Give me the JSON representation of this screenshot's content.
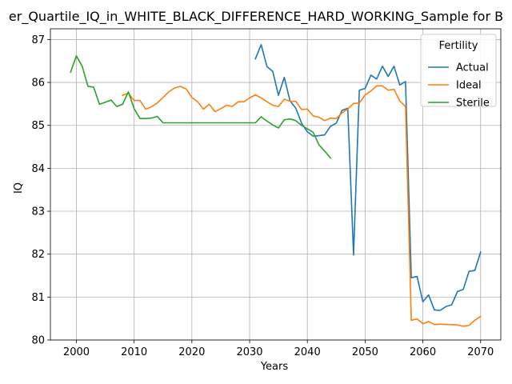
{
  "chart_data": {
    "type": "line",
    "title": "er_Quartile_IQ_in_WHITE_BLACK_DIFFERENCE_HARD_WORKING_Sample for B",
    "xlabel": "Years",
    "ylabel": "IQ",
    "xlim": [
      1995.5,
      2073.5
    ],
    "ylim": [
      80.0,
      87.25
    ],
    "xticks": [
      2000,
      2010,
      2020,
      2030,
      2040,
      2050,
      2060,
      2070
    ],
    "yticks": [
      80,
      81,
      82,
      83,
      84,
      85,
      86,
      87
    ],
    "grid": true,
    "legend": {
      "title": "Fertility",
      "placement": "upper-right"
    },
    "series": [
      {
        "name": "Actual",
        "color": "#1f77b4",
        "x": [
          2031,
          2032,
          2033,
          2034,
          2035,
          2036,
          2037,
          2038,
          2039,
          2040,
          2041,
          2042,
          2043,
          2044,
          2045,
          2046,
          2047,
          2048,
          2049,
          2050,
          2051,
          2052,
          2053,
          2054,
          2055,
          2056,
          2057,
          2058,
          2059,
          2060,
          2061,
          2062,
          2063,
          2064,
          2065,
          2066,
          2067,
          2068,
          2069,
          2070
        ],
        "y": [
          86.55,
          86.88,
          86.37,
          86.26,
          85.7,
          86.12,
          85.57,
          85.4,
          85.05,
          84.85,
          84.75,
          84.76,
          84.78,
          84.98,
          85.05,
          85.35,
          85.4,
          81.98,
          85.82,
          85.86,
          86.17,
          86.08,
          86.38,
          86.14,
          86.38,
          85.94,
          86.02,
          81.45,
          81.48,
          80.89,
          81.05,
          80.7,
          80.69,
          80.78,
          80.82,
          81.13,
          81.18,
          81.6,
          81.62,
          82.05
        ]
      },
      {
        "name": "Ideal",
        "color": "#ff7f0e",
        "x": [
          2008,
          2009,
          2010,
          2011,
          2012,
          2013,
          2014,
          2015,
          2016,
          2017,
          2018,
          2019,
          2020,
          2021,
          2022,
          2023,
          2024,
          2025,
          2026,
          2027,
          2028,
          2029,
          2030,
          2031,
          2032,
          2033,
          2034,
          2035,
          2036,
          2037,
          2038,
          2039,
          2040,
          2041,
          2042,
          2043,
          2044,
          2045,
          2046,
          2047,
          2048,
          2049,
          2050,
          2051,
          2052,
          2053,
          2054,
          2055,
          2056,
          2057,
          2058,
          2059,
          2060,
          2061,
          2062,
          2063,
          2064,
          2065,
          2066,
          2067,
          2068,
          2069,
          2070
        ],
        "y": [
          85.7,
          85.75,
          85.58,
          85.58,
          85.38,
          85.43,
          85.52,
          85.65,
          85.78,
          85.87,
          85.91,
          85.85,
          85.65,
          85.55,
          85.38,
          85.49,
          85.32,
          85.39,
          85.47,
          85.44,
          85.55,
          85.55,
          85.64,
          85.71,
          85.64,
          85.55,
          85.47,
          85.44,
          85.61,
          85.56,
          85.56,
          85.37,
          85.38,
          85.22,
          85.19,
          85.11,
          85.17,
          85.16,
          85.29,
          85.38,
          85.51,
          85.52,
          85.71,
          85.8,
          85.92,
          85.92,
          85.82,
          85.84,
          85.57,
          85.44,
          80.46,
          80.49,
          80.38,
          80.43,
          80.36,
          80.37,
          80.36,
          80.36,
          80.35,
          80.32,
          80.34,
          80.46,
          80.55
        ]
      },
      {
        "name": "Sterile",
        "color": "#2ca02c",
        "x": [
          1999,
          2000,
          2001,
          2002,
          2003,
          2004,
          2005,
          2006,
          2007,
          2008,
          2009,
          2010,
          2011,
          2012,
          2013,
          2014,
          2015,
          2016,
          2017,
          2018,
          2019,
          2020,
          2021,
          2022,
          2023,
          2024,
          2025,
          2026,
          2027,
          2028,
          2029,
          2030,
          2031,
          2032,
          2033,
          2034,
          2035,
          2036,
          2037,
          2038,
          2039,
          2040,
          2041,
          2042,
          2043,
          2044
        ],
        "y": [
          86.24,
          86.62,
          86.38,
          85.91,
          85.89,
          85.49,
          85.54,
          85.59,
          85.44,
          85.49,
          85.78,
          85.39,
          85.16,
          85.16,
          85.17,
          85.21,
          85.06,
          85.06,
          85.06,
          85.06,
          85.06,
          85.06,
          85.06,
          85.06,
          85.06,
          85.06,
          85.06,
          85.06,
          85.06,
          85.06,
          85.06,
          85.06,
          85.06,
          85.2,
          85.1,
          85.01,
          84.94,
          85.13,
          85.15,
          85.11,
          85.0,
          84.92,
          84.84,
          84.55,
          84.4,
          84.24
        ]
      }
    ]
  }
}
